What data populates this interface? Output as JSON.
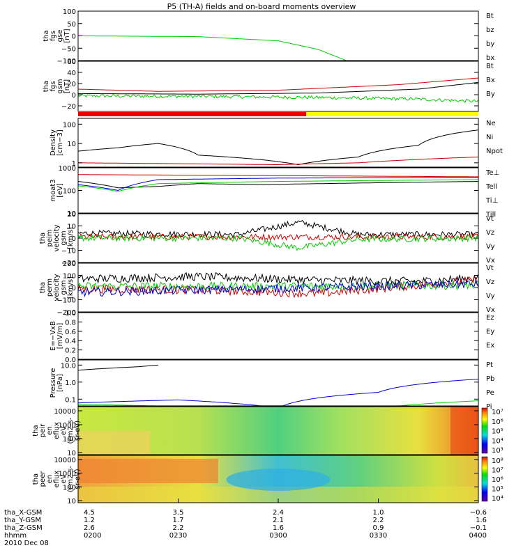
{
  "title": "P5 (TH-A) fields and on-board moments overview",
  "date": "2010 Dec 08",
  "colors": {
    "black": "#000000",
    "red": "#cc0000",
    "green": "#00dd00",
    "blue": "#0000cc",
    "yellow": "#ffff00",
    "darkred": "#990000"
  },
  "panels": [
    {
      "id": "fgs-gse",
      "ylabel": [
        "tha",
        "fgs",
        "gse",
        "[nT]"
      ],
      "ticks": [
        "100",
        "50",
        "0",
        "−50",
        "−100"
      ],
      "tick_vals": [
        100,
        50,
        0,
        -50,
        -100
      ],
      "ylim": [
        -100,
        100
      ],
      "legend": [
        {
          "label": "Bt",
          "color": "#000000"
        },
        {
          "label": "bz",
          "color": "#cc0000"
        },
        {
          "label": "by",
          "color": "#00cc00"
        },
        {
          "label": "bx",
          "color": "#0000cc"
        }
      ]
    },
    {
      "id": "fgs-gsm",
      "ylabel": [
        "tha",
        "fgs",
        "gsm",
        "[nT]"
      ],
      "ticks": [
        "60",
        "40",
        "20",
        "0",
        "−20"
      ],
      "tick_vals": [
        60,
        40,
        20,
        0,
        -20
      ],
      "ylim": [
        -30,
        60
      ],
      "legend": [
        {
          "label": "Bt",
          "color": "#000000"
        },
        {
          "label": "Bx",
          "color": "#cc0000"
        },
        {
          "label": "By",
          "color": "#00cc00"
        }
      ]
    },
    {
      "id": "density",
      "ylabel": [
        "Density",
        "[cm−3]"
      ],
      "ticks": [
        "100",
        "10",
        "1"
      ],
      "tick_vals": [
        100,
        10,
        1
      ],
      "log": true,
      "ylim": [
        0.6,
        200
      ],
      "legend": [
        {
          "label": "Ne",
          "color": "#cc0000"
        },
        {
          "label": "Ni",
          "color": "#000000"
        },
        {
          "label": "Npot",
          "color": "#0000cc"
        }
      ]
    },
    {
      "id": "temp",
      "ylabel": [
        "moat3",
        "[eV]"
      ],
      "ticks": [
        "1000",
        "100",
        "10"
      ],
      "tick_vals": [
        1000,
        100,
        10
      ],
      "log": true,
      "ylim": [
        10,
        1000
      ],
      "legend": [
        {
          "label": "Te⊥",
          "color": "#cc0000"
        },
        {
          "label": "Tell",
          "color": "#000000"
        },
        {
          "label": "Ti⊥",
          "color": "#0000cc"
        },
        {
          "label": "Till",
          "color": "#00cc00"
        }
      ]
    },
    {
      "id": "vel-perm",
      "ylabel": [
        "tha",
        "peim",
        "velocity",
        "gsm",
        "[km/s]"
      ],
      "ticks": [
        "20",
        "10",
        "0",
        "−10",
        "−20"
      ],
      "tick_vals": [
        20,
        10,
        0,
        -10,
        -20
      ],
      "ylim": [
        -20,
        20
      ],
      "legend": [
        {
          "label": "Vt",
          "color": "#000000"
        },
        {
          "label": "Vz",
          "color": "#cc0000"
        },
        {
          "label": "Vy",
          "color": "#00cc00"
        },
        {
          "label": "Vx",
          "color": "#0000cc"
        }
      ]
    },
    {
      "id": "vel-perm2",
      "ylabel": [
        "tha",
        "perm",
        "velocity",
        "gsm",
        "[km/s]"
      ],
      "ticks": [
        "200",
        "100",
        "0",
        "−100",
        "−200"
      ],
      "tick_vals": [
        200,
        100,
        0,
        -100,
        -200
      ],
      "ylim": [
        -200,
        200
      ],
      "legend": [
        {
          "label": "Vt",
          "color": "#000000"
        },
        {
          "label": "Vz",
          "color": "#cc0000"
        },
        {
          "label": "Vy",
          "color": "#00cc00"
        },
        {
          "label": "Vx",
          "color": "#0000cc"
        }
      ]
    },
    {
      "id": "efield",
      "ylabel": [
        "E=−VxB",
        "[mV/m]"
      ],
      "ticks": [
        "1.0",
        "0.8",
        "0.6",
        "0.4",
        "0.2",
        "0.0"
      ],
      "tick_vals": [
        1.0,
        0.8,
        0.6,
        0.4,
        0.2,
        0.0
      ],
      "ylim": [
        0,
        1
      ],
      "legend": [
        {
          "label": "Ez",
          "color": "#cc0000"
        },
        {
          "label": "Ey",
          "color": "#00cc00"
        },
        {
          "label": "Ex",
          "color": "#0000cc"
        }
      ]
    },
    {
      "id": "pressure",
      "ylabel": [
        "Pressure",
        "[nPa]"
      ],
      "ticks": [
        "10.0",
        "1.0",
        "0.1"
      ],
      "tick_vals": [
        10,
        1,
        0.1
      ],
      "log": true,
      "ylim": [
        0.04,
        20
      ],
      "legend": [
        {
          "label": "Pt",
          "color": "#000000"
        },
        {
          "label": "Pb",
          "color": "#cc0000"
        },
        {
          "label": "Pe",
          "color": "#00cc00"
        },
        {
          "label": "Pi",
          "color": "#0000cc"
        }
      ]
    },
    {
      "id": "ion-spec",
      "ylabel": [
        "tha",
        "peir",
        "en",
        "eflux",
        "eV",
        "(cm2-s-",
        "sr-eV)"
      ],
      "ticks": [
        "10000",
        "1000",
        "100",
        "10"
      ],
      "tick_vals": [
        10000,
        1000,
        100,
        10
      ],
      "log": true,
      "ylim": [
        7,
        20000
      ],
      "colorbar": [
        "10⁷",
        "10⁶",
        "10⁵",
        "10⁴",
        "10³"
      ]
    },
    {
      "id": "elec-spec",
      "ylabel": [
        "tha",
        "peer",
        "en",
        "eflux",
        "eV",
        "(cm2-s-",
        "sr-eV)"
      ],
      "ticks": [
        "10000",
        "1000",
        "100",
        "10"
      ],
      "tick_vals": [
        10000,
        1000,
        100,
        10
      ],
      "log": true,
      "ylim": [
        7,
        20000
      ],
      "colorbar": [
        "10⁸",
        "10⁷",
        "10⁶",
        "10⁵",
        "10⁴"
      ]
    }
  ],
  "xaxis": {
    "rows": [
      {
        "label": "tha_X-GSM",
        "values": [
          "4.5",
          "3.5",
          "2.4",
          "1.0",
          "−0.6"
        ]
      },
      {
        "label": "tha_Y-GSM",
        "values": [
          "1.2",
          "1.7",
          "2.1",
          "2.2",
          "1.6"
        ]
      },
      {
        "label": "tha_Z-GSM",
        "values": [
          "2.6",
          "2.2",
          "1.6",
          "0.9",
          "−0.1"
        ]
      },
      {
        "label": "hhmm",
        "values": [
          "0200",
          "0230",
          "0300",
          "0330",
          "0400"
        ]
      }
    ]
  },
  "chart_data": [
    {
      "type": "line",
      "title": "P5 (TH-A) fields and on-board moments overview",
      "panel": "fgs-gse",
      "x": [
        "0200",
        "0230",
        "0300",
        "0330",
        "0400"
      ],
      "ylim": [
        -100,
        100
      ],
      "series": [
        {
          "name": "by",
          "x": [
            0,
            0.3,
            0.5,
            0.6,
            0.67
          ],
          "values": [
            0,
            -3,
            -20,
            -55,
            -100
          ]
        }
      ]
    },
    {
      "type": "line",
      "panel": "fgs-gsm",
      "x": [
        "0200",
        "0230",
        "0300",
        "0330",
        "0400"
      ],
      "ylim": [
        -30,
        60
      ],
      "series": [
        {
          "name": "Bx",
          "x": [
            0,
            0.2,
            0.5,
            0.8,
            1.0
          ],
          "values": [
            10,
            6,
            8,
            18,
            30
          ]
        },
        {
          "name": "Bt",
          "x": [
            0,
            0.3,
            0.6,
            0.85,
            1.0
          ],
          "values": [
            2,
            1,
            3,
            10,
            22
          ]
        },
        {
          "name": "By",
          "x": [
            0,
            0.3,
            0.6,
            0.85,
            1.0
          ],
          "values": [
            -2,
            -3,
            -5,
            -8,
            -12
          ]
        }
      ]
    },
    {
      "type": "line",
      "panel": "density",
      "x": [
        "0200",
        "0230",
        "0300",
        "0330",
        "0400"
      ],
      "ylim": [
        0.6,
        200
      ],
      "series": [
        {
          "name": "Ni",
          "x": [
            0,
            0.1,
            0.2,
            0.3,
            0.45,
            0.55,
            0.7,
            0.85,
            1.0
          ],
          "values": [
            4,
            6,
            10,
            2.5,
            1.5,
            0.8,
            2,
            8,
            50
          ]
        },
        {
          "name": "Ne",
          "x": [
            0,
            0.5,
            0.7,
            1.0
          ],
          "values": [
            1.0,
            0.8,
            1.0,
            2.0
          ]
        }
      ]
    },
    {
      "type": "line",
      "panel": "temp",
      "x": [
        "0200",
        "0230",
        "0300",
        "0330",
        "0400"
      ],
      "ylim": [
        10,
        1000
      ],
      "series": [
        {
          "name": "Te⊥",
          "x": [
            0,
            0.5,
            1.0
          ],
          "values": [
            500,
            450,
            400
          ]
        },
        {
          "name": "Tell",
          "x": [
            0,
            0.1,
            0.2,
            0.3,
            0.45,
            1.0
          ],
          "values": [
            250,
            130,
            150,
            200,
            180,
            250
          ]
        },
        {
          "name": "Ti⊥",
          "x": [
            0,
            0.1,
            0.2,
            0.5,
            1.0
          ],
          "values": [
            180,
            100,
            300,
            350,
            380
          ]
        },
        {
          "name": "Till",
          "x": [
            0,
            0.1,
            0.2,
            0.5,
            1.0
          ],
          "values": [
            160,
            90,
            200,
            250,
            300
          ]
        }
      ]
    },
    {
      "type": "line",
      "panel": "vel-perm",
      "x": [
        "0200",
        "0230",
        "0300",
        "0330",
        "0400"
      ],
      "ylim": [
        -20,
        20
      ],
      "series": [
        {
          "name": "Vt",
          "x": [
            0,
            0.4,
            0.55,
            0.7,
            1.0
          ],
          "values": [
            4,
            3,
            13,
            3,
            3
          ]
        },
        {
          "name": "Vz",
          "x": [
            0,
            0.5,
            1.0
          ],
          "values": [
            1,
            1,
            1
          ]
        },
        {
          "name": "Vy",
          "x": [
            0,
            0.4,
            0.55,
            0.7,
            1.0
          ],
          "values": [
            0,
            0,
            -8,
            -1,
            0
          ]
        }
      ]
    },
    {
      "type": "line",
      "panel": "vel-perm2",
      "x": [
        "0200",
        "0230",
        "0300",
        "0330",
        "0400"
      ],
      "ylim": [
        -200,
        200
      ],
      "series": [
        {
          "name": "Vt",
          "x": [
            0,
            0.3,
            0.6,
            0.85,
            1.0
          ],
          "values": [
            70,
            90,
            60,
            50,
            80
          ]
        },
        {
          "name": "Vz",
          "x": [
            0,
            0.3,
            0.6,
            0.85,
            1.0
          ],
          "values": [
            -10,
            -20,
            -50,
            20,
            60
          ]
        },
        {
          "name": "Vy",
          "x": [
            0,
            0.5,
            1.0
          ],
          "values": [
            10,
            10,
            20
          ]
        },
        {
          "name": "Vx",
          "x": [
            0,
            0.3,
            0.6,
            1.0
          ],
          "values": [
            -40,
            -20,
            0,
            30
          ]
        }
      ]
    },
    {
      "type": "line",
      "panel": "pressure",
      "x": [
        "0200",
        "0230",
        "0300",
        "0330",
        "0400"
      ],
      "ylim": [
        0.04,
        20
      ],
      "series": [
        {
          "name": "Pt",
          "x": [
            0,
            0.15,
            0.2
          ],
          "values": [
            5,
            8,
            10
          ]
        },
        {
          "name": "Pi",
          "x": [
            0,
            0.25,
            0.5,
            0.75,
            1.0
          ],
          "values": [
            0.06,
            0.09,
            0.03,
            0.25,
            1.5
          ]
        },
        {
          "name": "Pe",
          "x": [
            0,
            0.2,
            0.5,
            0.8,
            1.0
          ],
          "values": [
            0.05,
            0.04,
            0.03,
            0.04,
            0.08
          ]
        }
      ]
    },
    {
      "type": "heatmap",
      "panel": "ion-spec",
      "x": [
        "0200",
        "0230",
        "0300",
        "0330",
        "0400"
      ],
      "ylim": [
        10,
        10000
      ]
    },
    {
      "type": "heatmap",
      "panel": "elec-spec",
      "x": [
        "0200",
        "0230",
        "0300",
        "0330",
        "0400"
      ],
      "ylim": [
        10,
        10000
      ]
    }
  ]
}
